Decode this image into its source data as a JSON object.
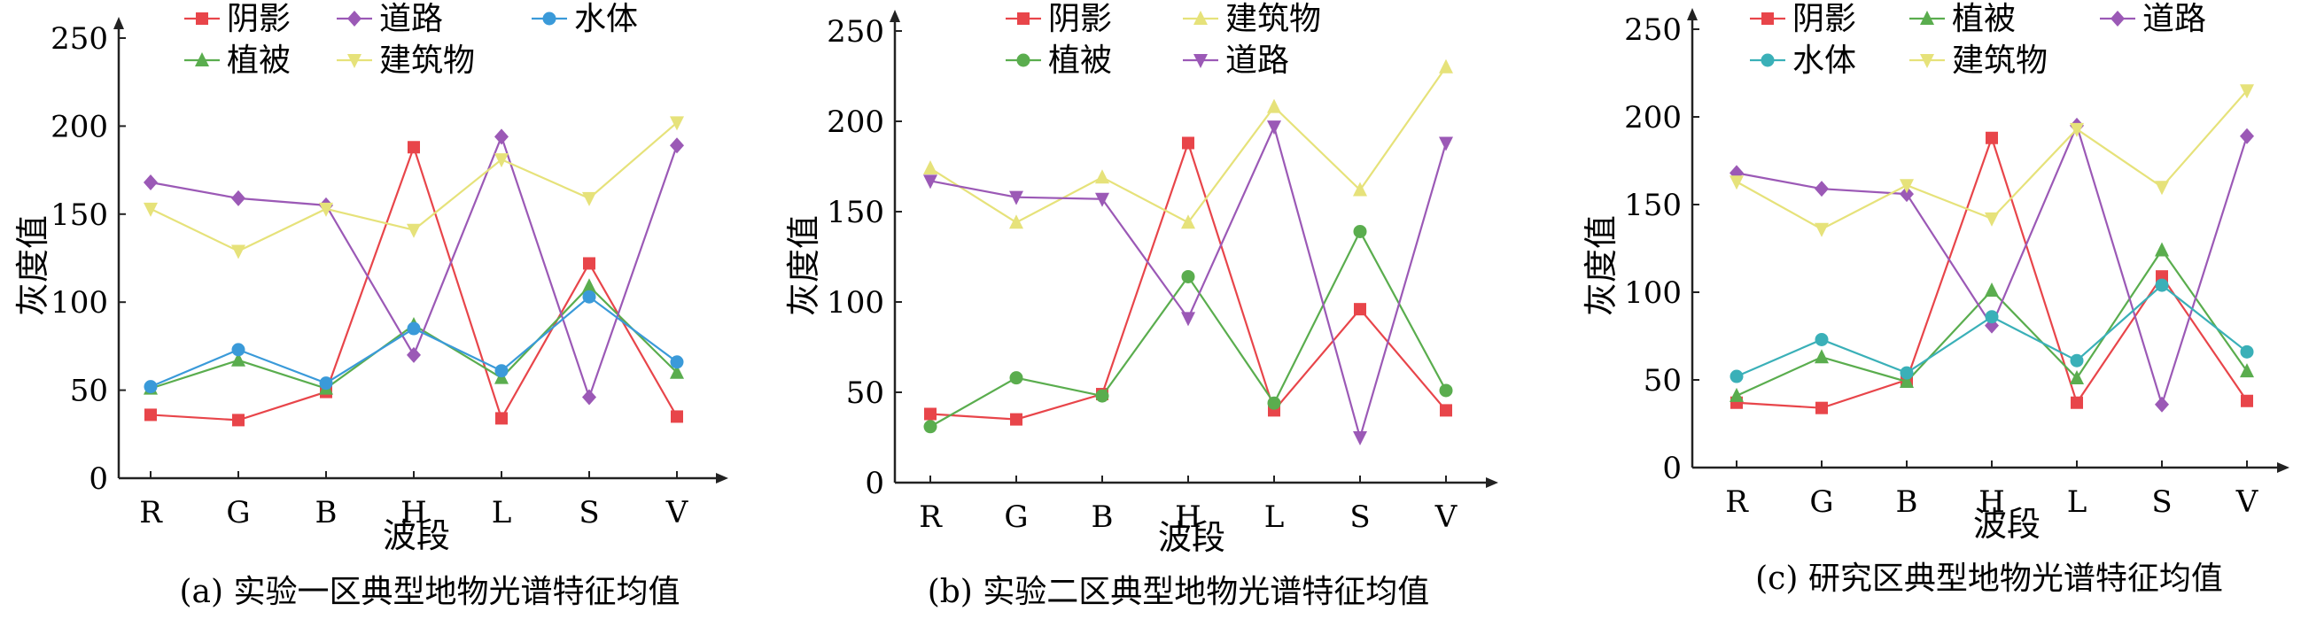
{
  "chart_data": [
    {
      "type": "line",
      "categories": [
        "R",
        "G",
        "B",
        "H",
        "L",
        "S",
        "V"
      ],
      "xlabel": "波段",
      "ylabel": "灰度值",
      "ylim": [
        0,
        250
      ],
      "yticks": [
        0,
        50,
        100,
        150,
        200,
        250
      ],
      "caption": "(a) 实验一区典型地物光谱特征均值",
      "series": [
        {
          "name": "阴影",
          "color": "#e8454a",
          "marker": "square",
          "values": [
            36,
            33,
            49,
            188,
            34,
            122,
            35
          ]
        },
        {
          "name": "植被",
          "color": "#5aad4e",
          "marker": "triangle-up",
          "values": [
            51,
            67,
            51,
            87,
            57,
            109,
            60
          ]
        },
        {
          "name": "道路",
          "color": "#9b59b6",
          "marker": "diamond",
          "values": [
            168,
            159,
            155,
            70,
            194,
            46,
            189
          ]
        },
        {
          "name": "水体",
          "color": "#3a9ad9",
          "marker": "circle",
          "values": [
            52,
            73,
            54,
            85,
            61,
            103,
            66
          ]
        },
        {
          "name": "建筑物",
          "color": "#e6e27a",
          "marker": "triangle-down",
          "values": [
            153,
            129,
            153,
            141,
            181,
            159,
            202
          ]
        }
      ]
    },
    {
      "type": "line",
      "categories": [
        "R",
        "G",
        "B",
        "H",
        "L",
        "S",
        "V"
      ],
      "xlabel": "波段",
      "ylabel": "灰度值",
      "ylim": [
        0,
        250
      ],
      "yticks": [
        0,
        50,
        100,
        150,
        200,
        250
      ],
      "caption": "(b) 实验二区典型地物光谱特征均值",
      "series": [
        {
          "name": "阴影",
          "color": "#e8454a",
          "marker": "square",
          "values": [
            38,
            35,
            49,
            188,
            40,
            96,
            40
          ]
        },
        {
          "name": "建筑物",
          "color": "#e6e27a",
          "marker": "triangle-up",
          "values": [
            174,
            144,
            169,
            144,
            208,
            162,
            230
          ]
        },
        {
          "name": "植被",
          "color": "#5aad4e",
          "marker": "circle",
          "values": [
            31,
            58,
            48,
            114,
            44,
            139,
            51
          ]
        },
        {
          "name": "道路",
          "color": "#9b59b6",
          "marker": "triangle-down",
          "values": [
            167,
            158,
            157,
            91,
            197,
            25,
            188
          ]
        }
      ]
    },
    {
      "type": "line",
      "categories": [
        "R",
        "G",
        "B",
        "H",
        "L",
        "S",
        "V"
      ],
      "xlabel": "波段",
      "ylabel": "灰度值",
      "ylim": [
        0,
        250
      ],
      "yticks": [
        0,
        50,
        100,
        150,
        200,
        250
      ],
      "caption": "(c) 研究区典型地物光谱特征均值",
      "series": [
        {
          "name": "阴影",
          "color": "#e8454a",
          "marker": "square",
          "values": [
            37,
            34,
            50,
            188,
            37,
            109,
            38
          ]
        },
        {
          "name": "植被",
          "color": "#5aad4e",
          "marker": "triangle-up",
          "values": [
            41,
            63,
            49,
            101,
            51,
            124,
            55
          ]
        },
        {
          "name": "道路",
          "color": "#9b59b6",
          "marker": "diamond",
          "values": [
            168,
            159,
            156,
            81,
            195,
            36,
            189
          ]
        },
        {
          "name": "水体",
          "color": "#3ab0b8",
          "marker": "circle",
          "values": [
            52,
            73,
            54,
            86,
            61,
            104,
            66
          ]
        },
        {
          "name": "建筑物",
          "color": "#e6e27a",
          "marker": "triangle-down",
          "values": [
            163,
            136,
            161,
            142,
            193,
            160,
            215
          ]
        }
      ]
    }
  ]
}
